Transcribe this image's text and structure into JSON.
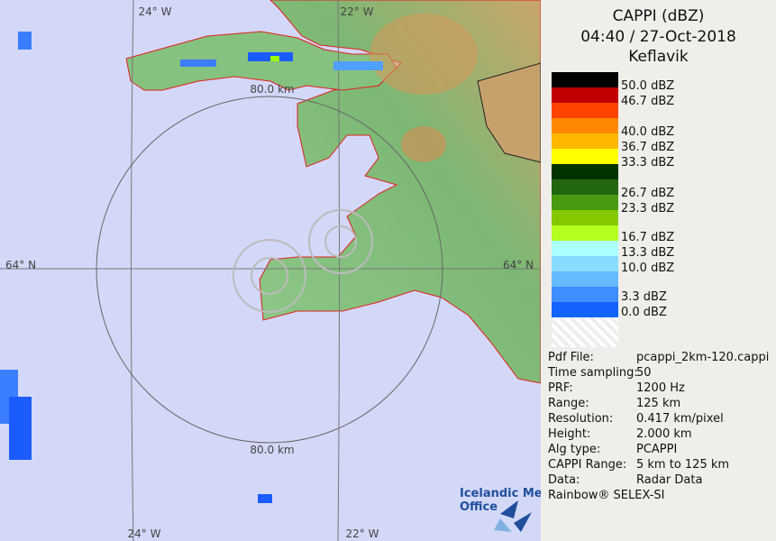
{
  "map": {
    "labels": {
      "lon_left_top": "24° W",
      "lon_right_top": "22° W",
      "lon_left_bottom": "24° W",
      "lon_right_bottom": "22° W",
      "lat_left": "64° N",
      "lat_right": "64° N",
      "range_top": "80.0 km",
      "range_bottom": "80.0 km"
    },
    "logo": {
      "line1": "Icelandic Met",
      "line2": "Office"
    }
  },
  "legend": {
    "title": "CAPPI (dBZ)",
    "time": "04:40 / 27-Oct-2018",
    "site": "Keflavik",
    "scale_labels": [
      "50.0 dBZ",
      "46.7 dBZ",
      "40.0 dBZ",
      "36.7 dBZ",
      "33.3 dBZ",
      "26.7 dBZ",
      "23.3 dBZ",
      "16.7 dBZ",
      "13.3 dBZ",
      "10.0 dBZ",
      "3.3 dBZ",
      "0.0 dBZ"
    ]
  },
  "info": {
    "rows": [
      [
        "Pdf File:",
        "pcappi_2km-120.cappi"
      ],
      [
        "Time sampling:",
        "50"
      ],
      [
        "PRF:",
        "1200 Hz"
      ],
      [
        "Range:",
        "125 km"
      ],
      [
        "Resolution:",
        "0.417 km/pixel"
      ],
      [
        "Height:",
        "2.000 km"
      ],
      [
        "Alg type:",
        "PCAPPI"
      ],
      [
        "CAPPI Range:",
        "5 km to 125 km"
      ],
      [
        "Data:",
        "Radar Data"
      ]
    ],
    "footer": "Rainbow® SELEX-SI"
  }
}
